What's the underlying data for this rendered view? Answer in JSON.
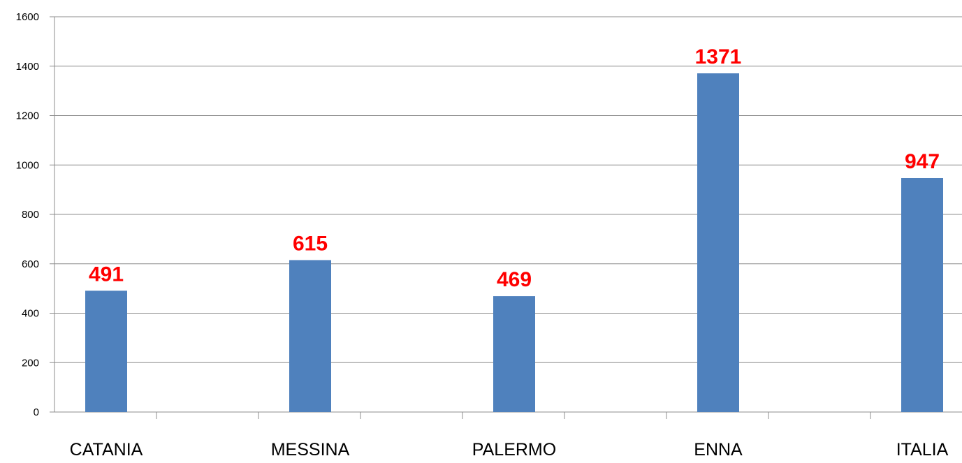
{
  "chart_data": {
    "type": "bar",
    "categories": [
      "CATANIA",
      "MESSINA",
      "PALERMO",
      "ENNA",
      "ITALIA"
    ],
    "values": [
      491,
      615,
      469,
      1371,
      947
    ],
    "data_labels": [
      "491",
      "615",
      "469",
      "1371",
      "947"
    ],
    "title": "",
    "xlabel": "",
    "ylabel": "",
    "ylim": [
      0,
      1600
    ],
    "yticks": [
      0,
      200,
      400,
      600,
      800,
      1000,
      1200,
      1400,
      1600
    ],
    "ytick_labels": [
      "0",
      "200",
      "400",
      "600",
      "800",
      "1000",
      "1200",
      "1400",
      "1600"
    ],
    "grid": true,
    "legend": "none",
    "colors": {
      "bar": "#4f81bd",
      "data_label": "#ff0000",
      "grid": "#8c8c8c",
      "axis": "#8c8c8c"
    }
  }
}
